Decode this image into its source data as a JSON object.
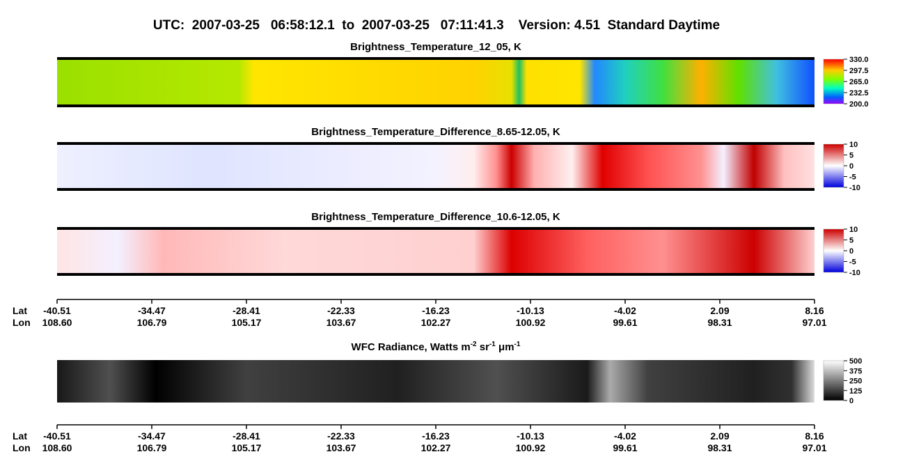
{
  "title": "UTC:  2007-03-25   06:58:12.1  to  2007-03-25   07:11:41.3    Version: 4.51  Standard Daytime",
  "panels": [
    {
      "title": [
        "Brightness_Temperature_12_05, K"
      ],
      "colorbar": [
        "330.0",
        "297.5",
        "265.0",
        "232.5",
        "200.0"
      ]
    },
    {
      "title": [
        "Brightness_Temperature_Difference_8.65-12.05, K"
      ],
      "colorbar": [
        "10",
        "5",
        "0",
        "-5",
        "-10"
      ]
    },
    {
      "title": [
        "Brightness_Temperature_Difference_10.6-12.05, K"
      ],
      "colorbar": [
        "10",
        "5",
        "0",
        "-5",
        "-10"
      ]
    },
    {
      "title": [
        "WFC Radiance, Watts m",
        "-2",
        " sr",
        "-1",
        " μm",
        "-1"
      ],
      "colorbar": [
        "500",
        "375",
        "250",
        "125",
        "0"
      ]
    }
  ],
  "axes": [
    {
      "lat_label": "Lat",
      "lon_label": "Lon",
      "lat": [
        "-40.51",
        "-34.47",
        "-28.41",
        "-22.33",
        "-16.23",
        "-10.13",
        "-4.02",
        "2.09",
        "8.16"
      ],
      "lon": [
        "108.60",
        "106.79",
        "105.17",
        "103.67",
        "102.27",
        "100.92",
        "99.61",
        "98.31",
        "97.01"
      ]
    },
    {
      "lat_label": "Lat",
      "lon_label": "Lon",
      "lat": [
        "-40.51",
        "-34.47",
        "-28.41",
        "-22.33",
        "-16.23",
        "-10.13",
        "-4.02",
        "2.09",
        "8.16"
      ],
      "lon": [
        "108.60",
        "106.79",
        "105.17",
        "103.67",
        "102.27",
        "100.92",
        "99.61",
        "98.31",
        "97.01"
      ]
    }
  ]
}
